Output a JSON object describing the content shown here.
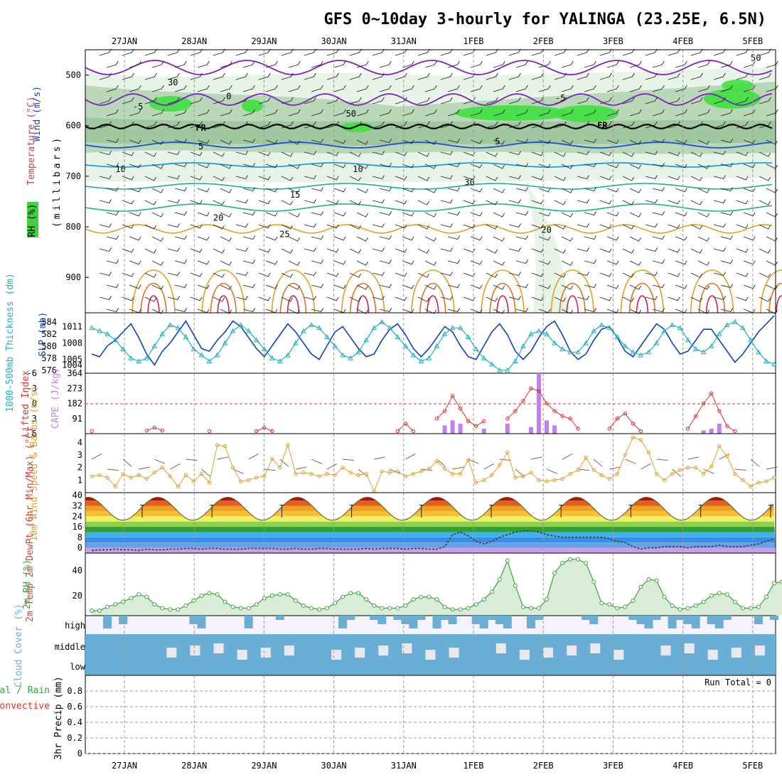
{
  "header": {
    "title": "GFS 0~10day 3-hourly for YALINGA (23.25E, 6.5N)"
  },
  "dates": [
    "27JAN",
    "28JAN",
    "29JAN",
    "30JAN",
    "31JAN",
    "1FEB",
    "2FEB",
    "3FEB",
    "4FEB",
    "5FEB"
  ],
  "colors": {
    "grid": "#999999",
    "rh_light": "#e8f4e8",
    "rh_mid": "#b8d8b8",
    "rh_dark": "#60a060",
    "rh_bright": "#40e040",
    "temp_purple": "#8020c0",
    "temp_blue": "#2050d0",
    "temp_cyan": "#20a0d0",
    "temp_teal": "#20b090",
    "temp_orange": "#e0a020",
    "temp_red": "#d02040",
    "slp": "#1040c0",
    "thickness": "#20b0c0",
    "cape": "#c080f0",
    "li": "#e03030",
    "wind10": "#e0a030",
    "cloud": "#6aaed6",
    "rh2m": "#40a040"
  },
  "chart_data": [
    {
      "type": "line",
      "panel": "upper-air",
      "ylabel_rh": "RH (%)",
      "ylabel_temp": "Temperature (°C)",
      "ylabel_wind": "Wind (m/s)",
      "ylabel_p": "(millibars)",
      "y_ticks": [
        500,
        600,
        700,
        800,
        900
      ],
      "ylim": [
        450,
        970
      ],
      "contour_labels": [
        {
          "text": "-5",
          "t": 0.45,
          "p": 568
        },
        {
          "text": "0",
          "t": 1.75,
          "p": 548
        },
        {
          "text": "FR",
          "t": 1.35,
          "p": 610
        },
        {
          "text": "FR",
          "t": 7.1,
          "p": 605
        },
        {
          "text": "5",
          "t": 1.35,
          "p": 647
        },
        {
          "text": "5",
          "t": 5.6,
          "p": 637
        },
        {
          "text": "-5",
          "t": 6.5,
          "p": 551
        },
        {
          "text": "10",
          "t": 0.2,
          "p": 692
        },
        {
          "text": "10",
          "t": 3.6,
          "p": 692
        },
        {
          "text": "15",
          "t": 2.7,
          "p": 742
        },
        {
          "text": "20",
          "t": 1.6,
          "p": 788
        },
        {
          "text": "20",
          "t": 6.3,
          "p": 812
        },
        {
          "text": "25",
          "t": 2.55,
          "p": 820
        },
        {
          "text": "30",
          "t": 0.95,
          "p": 520
        },
        {
          "text": "50",
          "t": 3.5,
          "p": 582
        },
        {
          "text": "30",
          "t": 5.2,
          "p": 718
        },
        {
          "text": "50",
          "t": 9.3,
          "p": 472
        }
      ]
    },
    {
      "type": "line",
      "panel": "slp-thickness",
      "ylabel_left": "1000-500mb Thickness (dm)",
      "ylabel_right": "SLP (mb)",
      "thickness_ticks": [
        "584",
        "582",
        "580",
        "578",
        "576"
      ],
      "slp_ticks": [
        "1011",
        "1008",
        "1005",
        "1004"
      ],
      "thickness_range": [
        575.5,
        585.5
      ],
      "slp_range": [
        1002.5,
        1013.5
      ],
      "slp": [
        1006,
        1005.5,
        1007.5,
        1008.5,
        1010,
        1011.5,
        1009,
        1006,
        1004,
        1006.5,
        1008,
        1010,
        1012,
        1009.5,
        1007,
        1006.5,
        1008.5,
        1010,
        1012,
        1011,
        1009,
        1007,
        1005.5,
        1007.5,
        1009.5,
        1011.5,
        1010,
        1008,
        1006,
        1005,
        1007.5,
        1010,
        1011,
        1009,
        1007,
        1005.5,
        1006,
        1008.5,
        1010.5,
        1011.5,
        1009.5,
        1007,
        1005.5,
        1007,
        1009,
        1011,
        1010,
        1007.5,
        1005.5,
        1005,
        1007.5,
        1010,
        1011.5,
        1009.5,
        1006.5,
        1005,
        1006.5,
        1009,
        1011,
        1012,
        1009.5,
        1006.5,
        1005,
        1006,
        1008.5,
        1010.5,
        1011,
        1009,
        1006.5,
        1005.5,
        1007.5,
        1009.5,
        1011.5,
        1010.5,
        1008,
        1006,
        1006.5,
        1008.5,
        1010.5,
        1010.5,
        1008.5,
        1006.5,
        1004.5,
        1006,
        1008,
        1010,
        1011.5,
        1013
      ],
      "thickness": [
        583,
        582.5,
        582,
        581,
        579.5,
        578,
        577.5,
        578,
        580,
        582,
        583.5,
        583,
        581.5,
        579.5,
        578.5,
        577.5,
        578.5,
        580.5,
        582.5,
        583.5,
        582.5,
        581,
        579.5,
        578,
        577.5,
        578.5,
        580.5,
        582.5,
        583.5,
        583,
        581.5,
        580,
        578.5,
        578,
        579,
        581,
        583,
        584,
        583,
        581.5,
        580,
        578.5,
        577.5,
        578,
        580,
        582,
        583,
        583,
        581.5,
        579.5,
        578,
        577,
        576,
        576,
        577.5,
        580,
        582,
        582.5,
        582,
        580.5,
        579.5,
        579,
        579,
        580.5,
        582.5,
        583.5,
        583,
        581.5,
        580,
        579,
        578.5,
        579,
        580.5,
        582.5,
        583.5,
        583,
        581,
        579.5,
        579,
        580,
        582,
        583.5,
        584,
        583,
        581,
        579,
        577.5,
        577
      ]
    },
    {
      "type": "bar",
      "panel": "cape-li",
      "ylabel_left": "Lifted Index",
      "ylabel_right": "CAPE (J/kg)",
      "li_ticks": [
        "-6",
        "-3",
        "0",
        "3",
        "6"
      ],
      "cape_ticks": [
        "364",
        "273",
        "182",
        "91"
      ],
      "cape_range": [
        0,
        364
      ],
      "li_range": [
        -6,
        6
      ],
      "cape_bars": [
        {
          "i": 45,
          "v": 50
        },
        {
          "i": 46,
          "v": 80
        },
        {
          "i": 47,
          "v": 60
        },
        {
          "i": 50,
          "v": 30
        },
        {
          "i": 53,
          "v": 60
        },
        {
          "i": 56,
          "v": 40
        },
        {
          "i": 57,
          "v": 370
        },
        {
          "i": 58,
          "v": 80
        },
        {
          "i": 59,
          "v": 50
        },
        {
          "i": 78,
          "v": 20
        },
        {
          "i": 79,
          "v": 30
        },
        {
          "i": 80,
          "v": 60
        }
      ],
      "li_points": [
        {
          "i": 0,
          "v": 5.5
        },
        {
          "i": 7,
          "v": 5.4
        },
        {
          "i": 8,
          "v": 4.8
        },
        {
          "i": 9,
          "v": 5.4
        },
        {
          "i": 15,
          "v": 5.5
        },
        {
          "i": 21,
          "v": 5.5
        },
        {
          "i": 22,
          "v": 4.8
        },
        {
          "i": 23,
          "v": 5.5
        },
        {
          "i": 39,
          "v": 5.5
        },
        {
          "i": 40,
          "v": 4.0
        },
        {
          "i": 41,
          "v": 5.5
        },
        {
          "i": 44,
          "v": 3.0
        },
        {
          "i": 45,
          "v": 1.5
        },
        {
          "i": 46,
          "v": -1.5
        },
        {
          "i": 47,
          "v": 1.0
        },
        {
          "i": 48,
          "v": 3.5
        },
        {
          "i": 49,
          "v": 4.5
        },
        {
          "i": 50,
          "v": 3.5
        },
        {
          "i": 53,
          "v": 3.0
        },
        {
          "i": 54,
          "v": 1.5
        },
        {
          "i": 55,
          "v": -0.5
        },
        {
          "i": 56,
          "v": -3.0
        },
        {
          "i": 57,
          "v": -2.5
        },
        {
          "i": 58,
          "v": 0.0
        },
        {
          "i": 59,
          "v": 1.5
        },
        {
          "i": 60,
          "v": 2.5
        },
        {
          "i": 61,
          "v": 3.0
        },
        {
          "i": 62,
          "v": 5.0
        },
        {
          "i": 66,
          "v": 5.0
        },
        {
          "i": 67,
          "v": 3.0
        },
        {
          "i": 68,
          "v": 2.0
        },
        {
          "i": 69,
          "v": 4.0
        },
        {
          "i": 70,
          "v": 5.5
        },
        {
          "i": 76,
          "v": 5.0
        },
        {
          "i": 77,
          "v": 2.5
        },
        {
          "i": 78,
          "v": 0.0
        },
        {
          "i": 79,
          "v": -2.0
        },
        {
          "i": 80,
          "v": 1.5
        },
        {
          "i": 81,
          "v": 4.5
        },
        {
          "i": 82,
          "v": 5.5
        }
      ]
    },
    {
      "type": "line",
      "panel": "wind10m",
      "ylabel": "10m Wind Speed & Barbs (m/s)",
      "y_ticks": [
        "4",
        "3",
        "2",
        "1"
      ],
      "ylim": [
        0,
        4.7
      ],
      "values": [
        1.3,
        1.4,
        1.2,
        0.5,
        1.5,
        1.2,
        1.4,
        1.1,
        1.6,
        2.0,
        1.3,
        0.5,
        1.4,
        0.9,
        1.5,
        0.8,
        3.8,
        3.7,
        2.0,
        0.9,
        1.0,
        1.2,
        1.3,
        2.7,
        2.0,
        3.8,
        1.5,
        1.6,
        1.5,
        1.3,
        1.5,
        1.4,
        2.0,
        1.6,
        1.4,
        1.5,
        0.1,
        1.7,
        1.6,
        1.7,
        1.3,
        1.5,
        1.7,
        1.9,
        2.5,
        1.9,
        1.5,
        1.5,
        2.6,
        0.8,
        1.0,
        1.4,
        2.2,
        3.2,
        1.2,
        1.3,
        1.6,
        1.0,
        0.9,
        1.0,
        1.1,
        1.5,
        1.8,
        2.8,
        1.8,
        1.4,
        1.1,
        1.5,
        3.0,
        4.4,
        4.2,
        3.2,
        1.5,
        1.0,
        1.5,
        1.8,
        2.0,
        2.0,
        1.5,
        2.1,
        3.7,
        2.9,
        1.5,
        1.0,
        0.5,
        0.8,
        0.9,
        1.2
      ]
    },
    {
      "type": "area",
      "panel": "temp2m",
      "ylabel": "2m Temp 2m DewPt (6hr Min/Max) (°C)",
      "y_ticks": [
        "40",
        "32",
        "24",
        "16",
        "8",
        "0"
      ],
      "ylim": [
        -4,
        42
      ],
      "temp_min": 21,
      "temp_max": 38.5,
      "dewpoint": [
        -2,
        -1.5,
        -1.5,
        -1,
        -1.5,
        -1.5,
        -2,
        -1,
        -1.5,
        -1.5,
        -1,
        -1,
        -0.5,
        -0.5,
        -1,
        -0.5,
        -0.5,
        -1,
        -1,
        -1,
        -0.5,
        -0.5,
        -0.5,
        -0.5,
        -1,
        -1,
        -0.5,
        -1,
        -1,
        -0.5,
        -0.5,
        -1,
        -1,
        -1,
        -1,
        -0.5,
        -1,
        -0.5,
        -0.5,
        -0.5,
        -1,
        -0.5,
        -0.5,
        -1,
        -1,
        1,
        10,
        12,
        9,
        5,
        3,
        5,
        8,
        10,
        12,
        13,
        13,
        12,
        10,
        9,
        8,
        8,
        8,
        8,
        8,
        8,
        7,
        5,
        4,
        1,
        -1,
        0,
        0,
        1,
        1,
        1,
        0,
        1,
        1,
        1,
        2,
        1,
        1,
        1,
        2,
        3,
        5,
        7
      ]
    },
    {
      "type": "area",
      "panel": "rh2m",
      "ylabel": "2m RH (%)",
      "y_ticks": [
        "40",
        "20"
      ],
      "ylim": [
        4,
        54
      ],
      "values": [
        8,
        8,
        11,
        13,
        15,
        18,
        21,
        19,
        13,
        10,
        9,
        9,
        12,
        16,
        20,
        22,
        21,
        15,
        11,
        10,
        10,
        13,
        18,
        20,
        21,
        21,
        16,
        12,
        10,
        9,
        10,
        14,
        19,
        22,
        22,
        17,
        12,
        10,
        10,
        10,
        12,
        17,
        19,
        19,
        17,
        11,
        9,
        9,
        10,
        13,
        17,
        23,
        33,
        48,
        28,
        11,
        10,
        10,
        17,
        38,
        46,
        49,
        49,
        46,
        31,
        14,
        13,
        10,
        11,
        16,
        27,
        33,
        32,
        19,
        12,
        9,
        10,
        12,
        15,
        20,
        22,
        21,
        15,
        10,
        10,
        11,
        19,
        30,
        31
      ]
    },
    {
      "type": "heatmap",
      "panel": "cloud",
      "ylabel": "Cloud Cover (%)",
      "layer_labels": [
        "high",
        "middle",
        "low"
      ]
    },
    {
      "type": "bar",
      "panel": "precip",
      "ylabel_left": "Total / Rain",
      "ylabel_left2": "Convective",
      "ylabel": "3hr Precip (mm)",
      "y_ticks": [
        "0.8",
        "0.6",
        "0.4",
        "0.2",
        "0"
      ],
      "ylim": [
        0,
        1
      ],
      "run_total": "Run Total = 0",
      "values": []
    }
  ]
}
